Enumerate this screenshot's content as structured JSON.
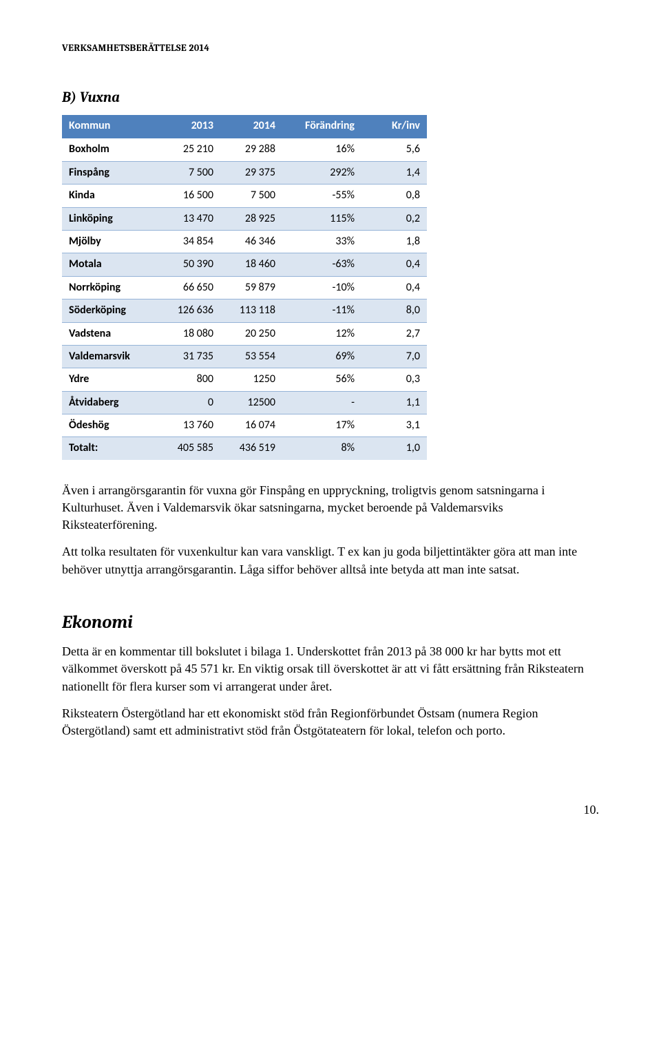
{
  "header": "VERKSAMHETSBERÄTTELSE 2014",
  "sectionTitle": "B) Vuxna",
  "table": {
    "columns": [
      "Kommun",
      "2013",
      "2014",
      "Förändring",
      "Kr/inv"
    ],
    "rows": [
      [
        "Boxholm",
        "25 210",
        "29 288",
        "16%",
        "5,6"
      ],
      [
        "Finspång",
        "7 500",
        "29 375",
        "292%",
        "1,4"
      ],
      [
        "Kinda",
        "16 500",
        "7 500",
        "-55%",
        "0,8"
      ],
      [
        "Linköping",
        "13 470",
        "28 925",
        "115%",
        "0,2"
      ],
      [
        "Mjölby",
        "34 854",
        "46 346",
        "33%",
        "1,8"
      ],
      [
        "Motala",
        "50 390",
        "18 460",
        "-63%",
        "0,4"
      ],
      [
        "Norrköping",
        "66 650",
        "59 879",
        "-10%",
        "0,4"
      ],
      [
        "Söderköping",
        "126 636",
        "113 118",
        "-11%",
        "8,0"
      ],
      [
        "Vadstena",
        "18 080",
        "20 250",
        "12%",
        "2,7"
      ],
      [
        "Valdemarsvik",
        "31 735",
        "53 554",
        "69%",
        "7,0"
      ],
      [
        "Ydre",
        "800",
        "1250",
        "56%",
        "0,3"
      ],
      [
        "Åtvidaberg",
        "0",
        "12500",
        "-",
        "1,1"
      ],
      [
        "Ödeshög",
        "13 760",
        "16 074",
        "17%",
        "3,1"
      ],
      [
        "Totalt:",
        "405 585",
        "436 519",
        "8%",
        "1,0"
      ]
    ],
    "headerBg": "#4f81bd",
    "headerColor": "#ffffff",
    "stripeBg": "#dbe5f1",
    "borderColor": "#95b3d7"
  },
  "paragraphs": [
    "Även i arrangörsgarantin för vuxna gör Finspång en uppryckning, troligtvis genom satsningarna i Kulturhuset. Även i Valdemarsvik ökar satsningarna, mycket beroende på Valdemarsviks Riksteaterförening.",
    "Att tolka resultaten för vuxenkultur kan vara vanskligt. T ex kan ju goda biljettintäkter göra att man inte behöver utnyttja arrangörsgarantin. Låga siffor behöver alltså inte betyda att man inte satsat."
  ],
  "ekonomiTitle": "Ekonomi",
  "ekonomiParagraphs": [
    "Detta är en kommentar till bokslutet i bilaga 1. Underskottet från 2013 på 38 000 kr har bytts mot ett välkommet överskott på 45 571 kr. En viktig orsak till överskottet är att vi fått ersättning från Riksteatern nationellt för flera kurser som vi arrangerat under året.",
    "Riksteatern Östergötland har ett ekonomiskt stöd från Regionförbundet Östsam (numera Region Östergötland) samt ett administrativt stöd från Östgötateatern för lokal, telefon och porto."
  ],
  "pageNum": "10."
}
